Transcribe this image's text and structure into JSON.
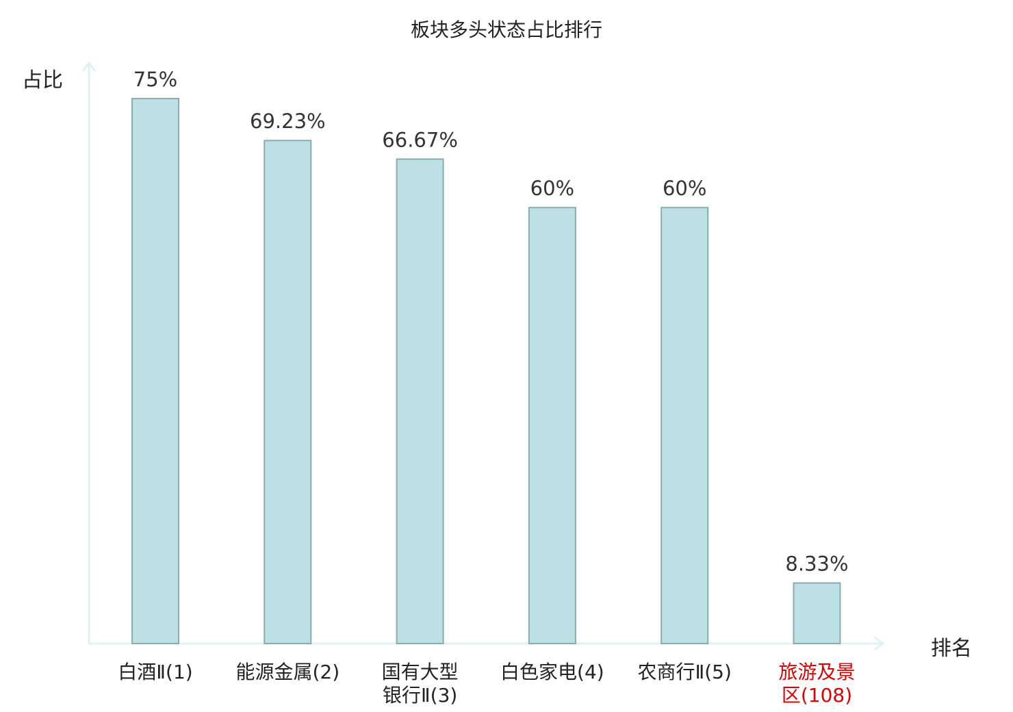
{
  "chart_data": {
    "type": "bar",
    "title": "板块多头状态占比排行",
    "ylabel": "占比",
    "xlabel": "排名",
    "ylim": [
      0,
      80
    ],
    "categories": [
      "白酒Ⅱ(1)",
      "能源金属(2)",
      "国有大型银行Ⅱ(3)",
      "白色家电(4)",
      "农商行Ⅱ(5)",
      "旅游及景区(108)"
    ],
    "category_lines": [
      [
        "白酒Ⅱ(1)"
      ],
      [
        "能源金属(2)"
      ],
      [
        "国有大型",
        "银行Ⅱ(3)"
      ],
      [
        "白色家电(4)"
      ],
      [
        "农商行Ⅱ(5)"
      ],
      [
        "旅游及景",
        "区(108)"
      ]
    ],
    "values": [
      75,
      69.23,
      66.67,
      60,
      60,
      8.33
    ],
    "value_labels": [
      "75%",
      "69.23%",
      "66.67%",
      "60%",
      "60%",
      "8.33%"
    ],
    "highlight_index": 5,
    "colors": {
      "bar_fill": "#bce0e3",
      "bar_stroke": "#8aacae",
      "axis": "#e0f2f1",
      "highlight_text": "#e00000",
      "text": "#222222"
    },
    "grid": false
  }
}
